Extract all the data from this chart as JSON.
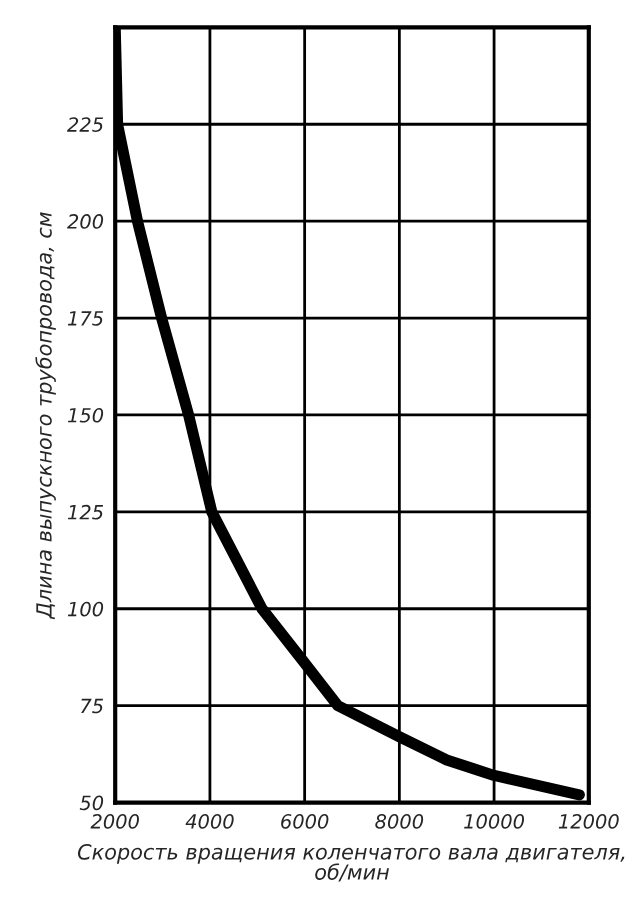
{
  "chart_data": {
    "type": "line",
    "xlabel": "Скорость вращения коленчатого вала двигателя,\nоб/мин",
    "ylabel": "Длина выпускного трубопровода, см",
    "x": [
      2000,
      2050,
      2470,
      2980,
      3550,
      4040,
      5100,
      6000,
      6700,
      8000,
      9000,
      10000,
      11800
    ],
    "series": [
      {
        "color": "#000000",
        "values": [
          250,
          225,
          200,
          175,
          150,
          125,
          100,
          86,
          75,
          67,
          61,
          57,
          52
        ]
      }
    ],
    "xlim": [
      2000,
      12000
    ],
    "xticks": [
      2000,
      4000,
      6000,
      8000,
      10000,
      12000
    ],
    "ylim": [
      50,
      250
    ],
    "yticks": [
      50,
      75,
      100,
      125,
      150,
      175,
      200,
      225
    ],
    "grid": true,
    "line_style": "solid",
    "marker": "none"
  }
}
